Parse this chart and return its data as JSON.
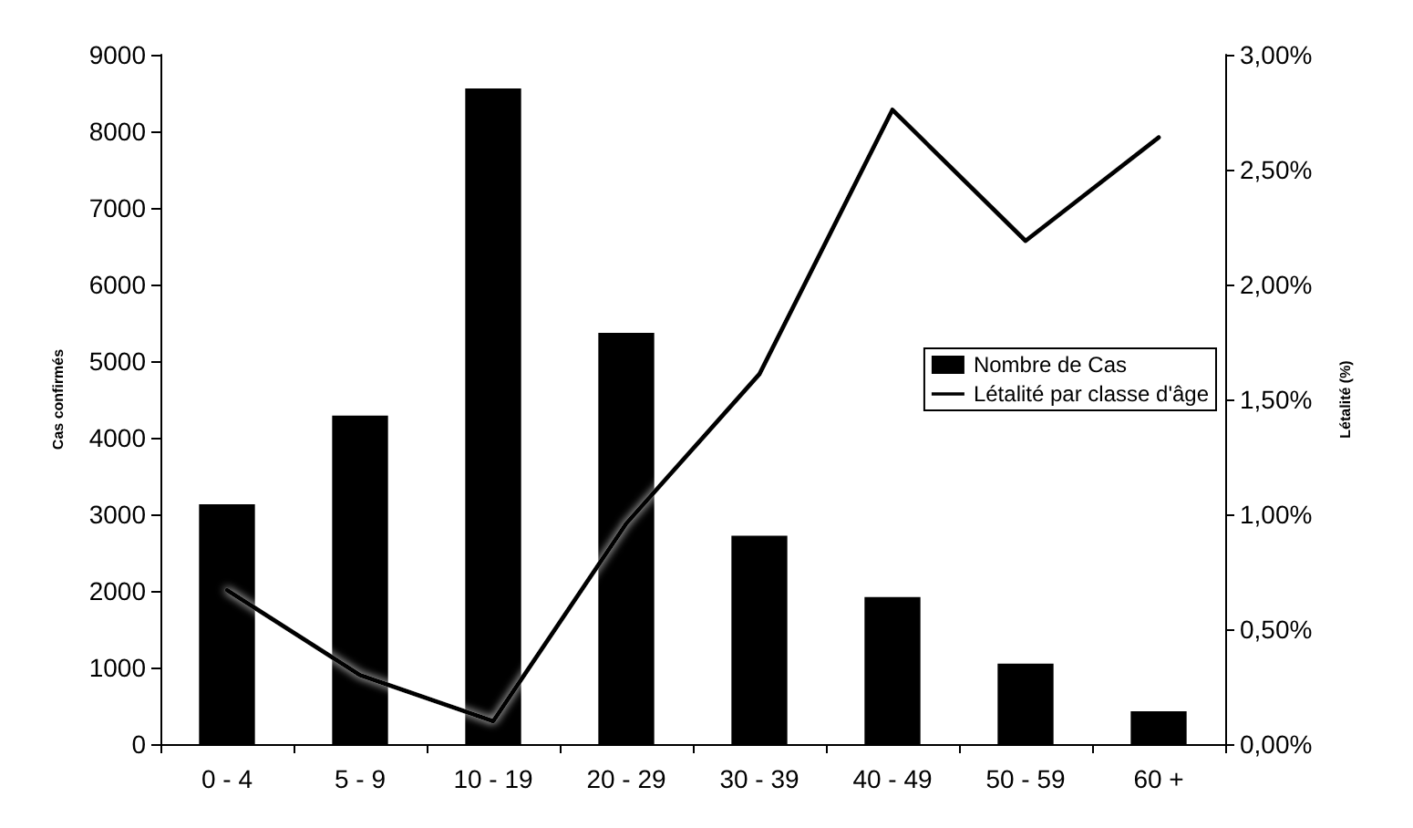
{
  "chart_data": {
    "type": "bar",
    "ylabel": "Cas confirmés",
    "y2label": "Létalité (%)",
    "categories": [
      "0 - 4",
      "5 - 9",
      "10 - 19",
      "20 - 29",
      "30 - 39",
      "40 - 49",
      "50 - 59",
      "60 +"
    ],
    "series": [
      {
        "name": "Nombre de Cas",
        "color": "#000000",
        "values": [
          3130,
          4290,
          8560,
          5370,
          2720,
          1920,
          1050,
          430
        ]
      },
      {
        "name": "Létalité par classe d'âge",
        "type": "line",
        "axis": "y2",
        "color": "#000000",
        "marker": "none",
        "line_style": "solid",
        "values": [
          0.67,
          0.3,
          0.1,
          0.96,
          1.61,
          2.76,
          2.19,
          2.64
        ]
      }
    ],
    "ylim": [
      0,
      9000
    ],
    "yticks": [
      0,
      1000,
      2000,
      3000,
      4000,
      5000,
      6000,
      7000,
      8000,
      9000
    ],
    "y2lim": [
      0,
      3
    ],
    "y2ticks": [
      {
        "value": 0,
        "label": "0,00%"
      },
      {
        "value": 0.5,
        "label": "0,50%"
      },
      {
        "value": 1,
        "label": "1,00%"
      },
      {
        "value": 1.5,
        "label": "1,50%"
      },
      {
        "value": 2,
        "label": "2,00%"
      },
      {
        "value": 2.5,
        "label": "2,50%"
      },
      {
        "value": 3,
        "label": "3,00%"
      }
    ],
    "grid": false,
    "legend": "right"
  }
}
